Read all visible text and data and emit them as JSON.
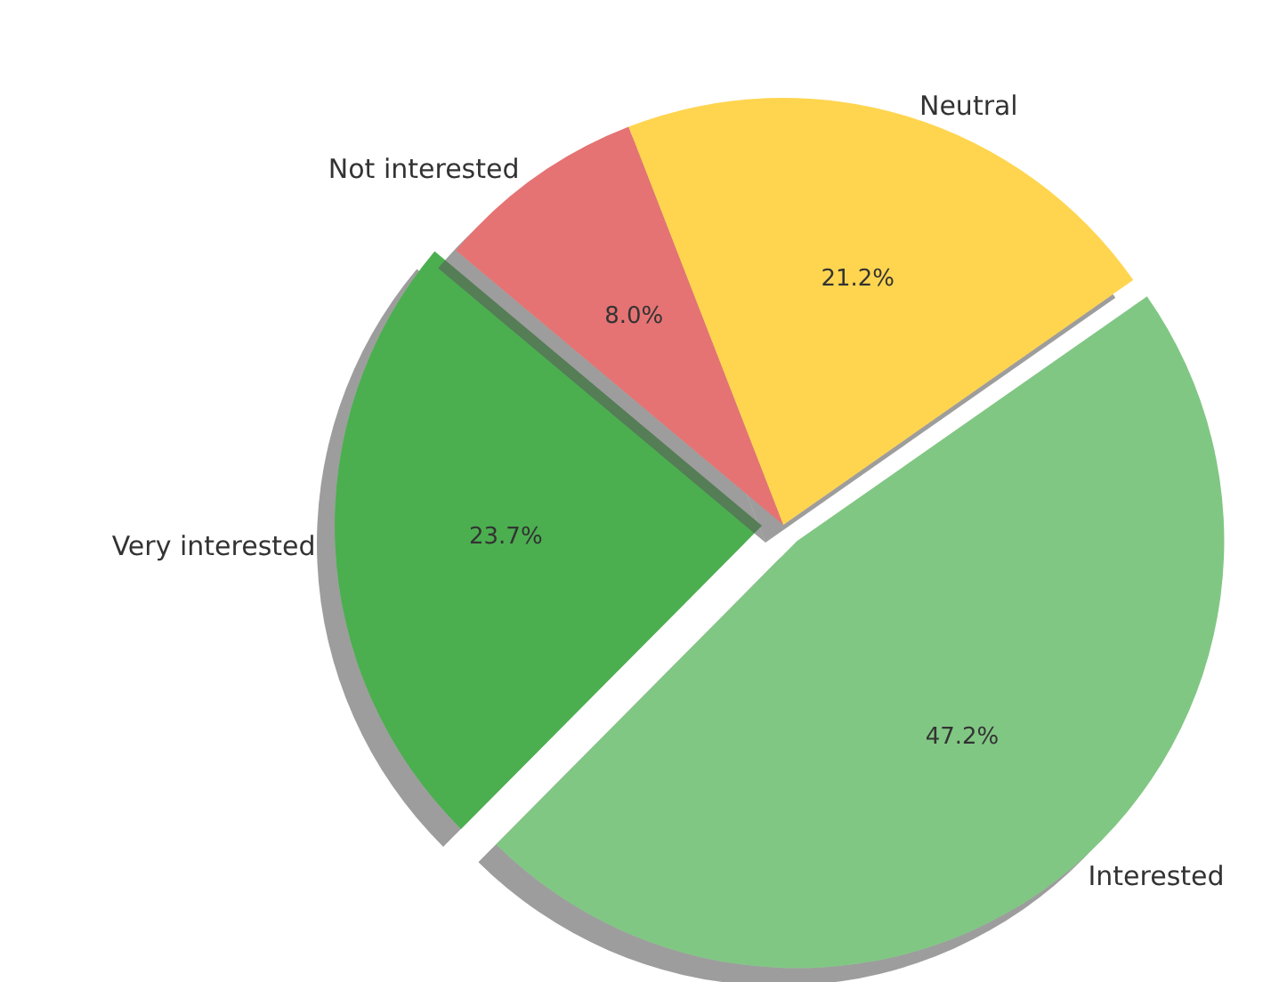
{
  "chart_data": {
    "type": "pie",
    "categories": [
      "Very interested",
      "Interested",
      "Neutral",
      "Not interested"
    ],
    "values": [
      23.7,
      47.2,
      21.2,
      8.0
    ],
    "colors": [
      "#4caf50",
      "#81c784",
      "#ffd54f",
      "#e57373"
    ],
    "value_labels": [
      "23.7%",
      "47.2%",
      "21.2%",
      "8.0%"
    ]
  }
}
